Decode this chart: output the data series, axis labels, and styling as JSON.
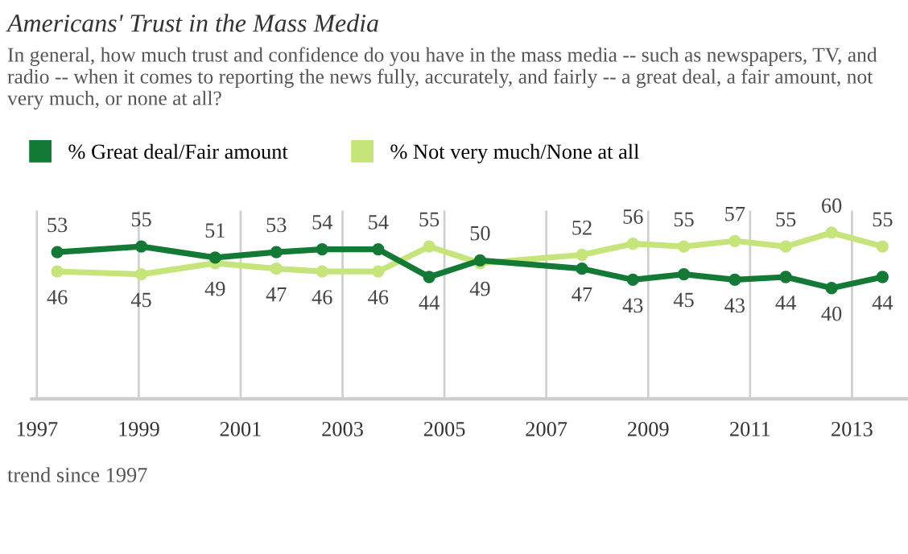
{
  "chart_data": {
    "type": "line",
    "title": "Americans' Trust in the Mass Media",
    "subtitle": "In general, how much trust and confidence do you have in the mass media -- such as newspapers, TV, and radio -- when it comes to reporting the news fully, accurately, and fairly -- a great deal, a fair amount, not very much, or none at all?",
    "x": [
      1997.4,
      1999.05,
      2000.5,
      2001.7,
      2002.6,
      2003.7,
      2004.7,
      2005.7,
      2007.7,
      2008.7,
      2009.7,
      2010.7,
      2011.7,
      2012.6,
      2013.6
    ],
    "series": [
      {
        "name": "% Great deal/Fair amount",
        "color": "#127a35",
        "values": [
          53,
          55,
          51,
          53,
          54,
          54,
          44,
          50,
          47,
          43,
          45,
          43,
          44,
          40,
          44
        ]
      },
      {
        "name": "% Not very much/None at all",
        "color": "#c5e57a",
        "values": [
          46,
          45,
          49,
          47,
          46,
          46,
          55,
          49,
          52,
          56,
          55,
          57,
          55,
          60,
          55
        ]
      }
    ],
    "xlim": [
      1996.9,
      2014.1
    ],
    "xticks": [
      1997,
      1999,
      2001,
      2003,
      2005,
      2007,
      2009,
      2011,
      2013
    ],
    "ylim": [
      0,
      68
    ],
    "tick_labels": "x",
    "grid": "x",
    "legend": "top left",
    "marker": "circle",
    "line_style": "solid",
    "data_labels": true,
    "annotations": [
      "trend since 1997"
    ]
  }
}
